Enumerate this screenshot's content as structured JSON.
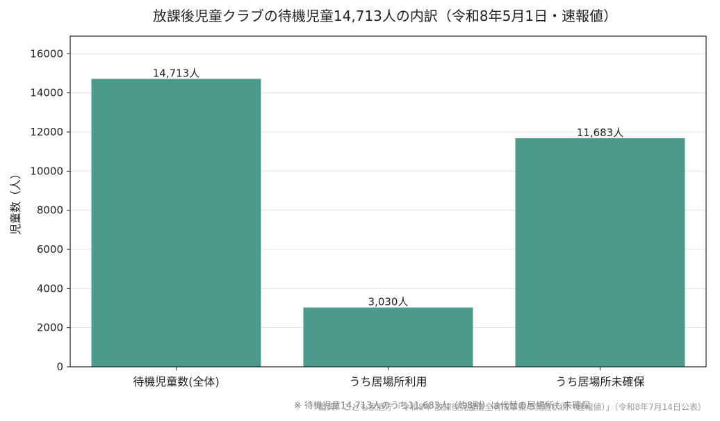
{
  "chart_data": {
    "type": "bar",
    "title": "放課後児童クラブの待機児童14,713人の内訳（令和8年5月1日・速報値）",
    "xlabel": "",
    "ylabel": "児童数（人）",
    "categories": [
      "待機児童数(全体)",
      "うち居場所利用",
      "うち居場所未確保"
    ],
    "values": [
      14713,
      3030,
      11683
    ],
    "data_labels": [
      "14,713人",
      "3,030人",
      "11,683人"
    ],
    "ylim": [
      0,
      16900
    ],
    "yticks": [
      0,
      2000,
      4000,
      6000,
      8000,
      10000,
      12000,
      14000,
      16000
    ],
    "grid": "horizontal",
    "bar_color": "#4c9a8c"
  },
  "footer": {
    "note": "※ 待機児童14,713人のうち11,683人（約8割）は代替の居場所も未確保",
    "source": "出典：こども家庭庁「令和8年 放課後児童健全育成事業の実施状況（速報値）」（令和8年7月14日公表）"
  }
}
